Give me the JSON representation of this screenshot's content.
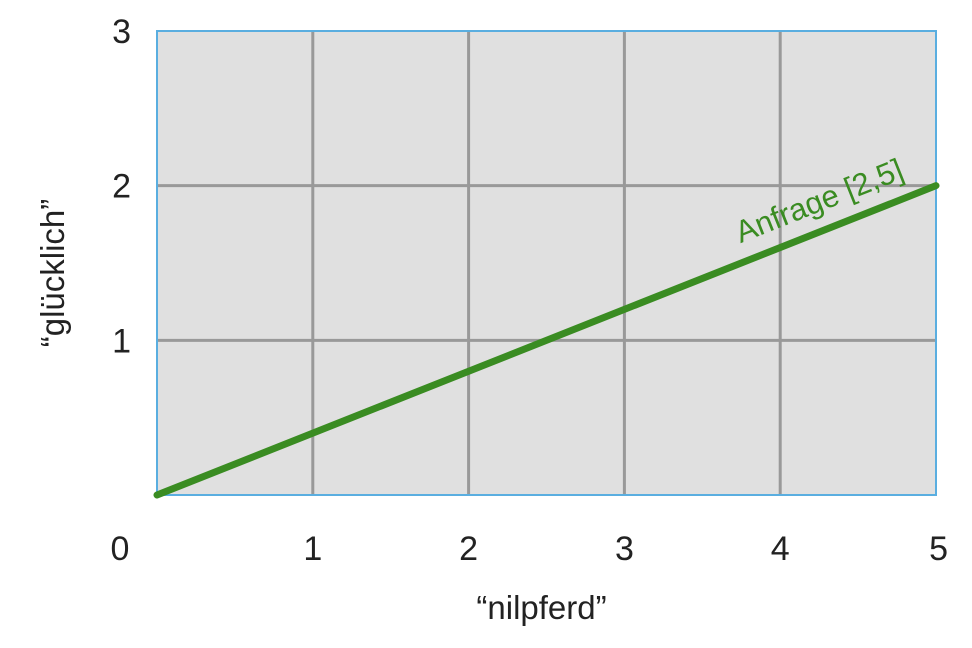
{
  "chart_data": {
    "type": "line",
    "xlabel": "“nilpferd”",
    "ylabel": "“glücklich”",
    "xlim": [
      0,
      5
    ],
    "ylim": [
      0,
      3
    ],
    "x_ticks": [
      "0",
      "1",
      "2",
      "3",
      "4",
      "5"
    ],
    "y_ticks": [
      "1",
      "2",
      "3"
    ],
    "grid": true,
    "colors": {
      "plot_background": "#e0e0e0",
      "grid": "#999999",
      "frame": "#5aaee0",
      "series": "#3a8c22"
    },
    "series": [
      {
        "name": "Anfrage [2,5]",
        "x": [
          0,
          5
        ],
        "y": [
          0,
          2
        ]
      }
    ]
  }
}
